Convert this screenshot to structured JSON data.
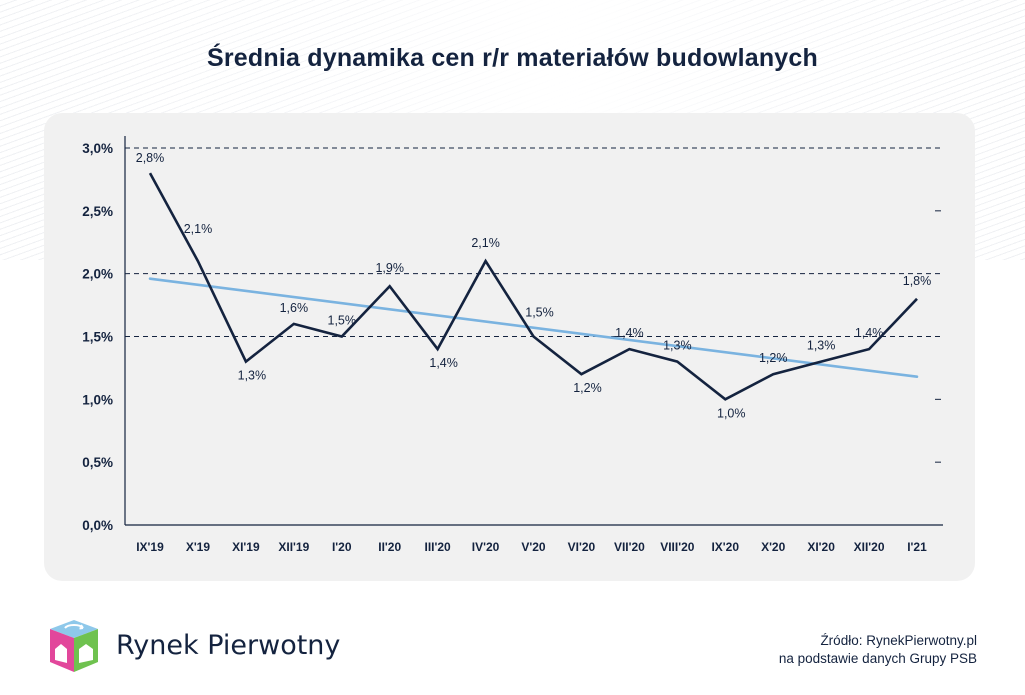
{
  "title": "Średnia dynamika cen r/r materiałów budowlanych",
  "chart_data": {
    "type": "line",
    "title": "Średnia dynamika cen r/r materiałów budowlanych",
    "categories": [
      "IX'19",
      "X'19",
      "XI'19",
      "XII'19",
      "I'20",
      "II'20",
      "III'20",
      "IV'20",
      "V'20",
      "VI'20",
      "VII'20",
      "VIII'20",
      "IX'20",
      "X'20",
      "XI'20",
      "XII'20",
      "I'21"
    ],
    "series": [
      {
        "values": [
          2.8,
          2.1,
          1.3,
          1.6,
          1.5,
          1.9,
          1.4,
          2.1,
          1.5,
          1.2,
          1.4,
          1.3,
          1.0,
          1.2,
          1.3,
          1.4,
          1.8
        ],
        "labels": [
          "2,8%",
          "2,1%",
          "1,3%",
          "1,6%",
          "1,5%",
          "1,9%",
          "1,4%",
          "2,1%",
          "1,5%",
          "1,2%",
          "1,4%",
          "1,3%",
          "1,0%",
          "1,2%",
          "1,3%",
          "1,4%",
          "1,8%"
        ],
        "color": "#14233f"
      }
    ],
    "trendline": {
      "start": 1.96,
      "end": 1.18,
      "color": "#7ab3e0"
    },
    "ylim": [
      0,
      3
    ],
    "yticks": [
      0,
      0.5,
      1.0,
      1.5,
      2.0,
      2.5,
      3.0
    ],
    "ytick_labels": [
      "0,0%",
      "0,5%",
      "1,0%",
      "1,5%",
      "2,0%",
      "2,5%",
      "3,0%"
    ],
    "gridlines": [
      1.5,
      2.0,
      3.0
    ],
    "xlabel": "",
    "ylabel": "",
    "legend": "none"
  },
  "logo": {
    "text": "Rynek Pierwotny"
  },
  "source": {
    "line1": "Źródło: RynekPierwotny.pl",
    "line2": "na podstawie danych Grupy PSB"
  }
}
